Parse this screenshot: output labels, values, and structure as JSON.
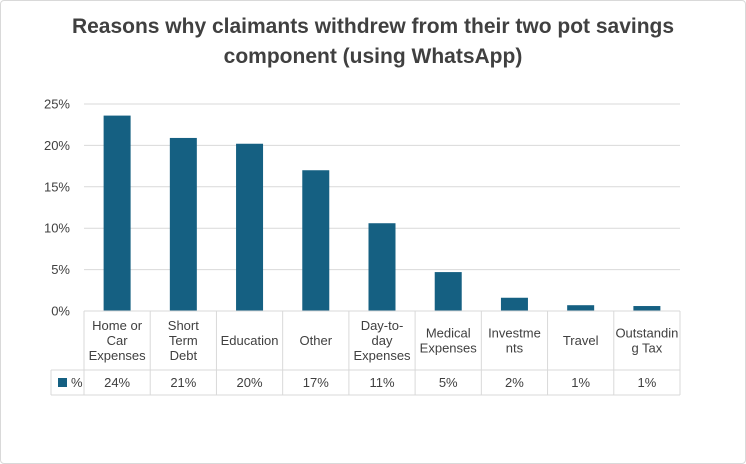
{
  "chart_data": {
    "type": "bar",
    "title": "Reasons why claimants withdrew from their two pot savings component (using WhatsApp)",
    "categories": [
      [
        "Home or",
        "Car",
        "Expenses"
      ],
      [
        "Short",
        "Term",
        "Debt"
      ],
      [
        "Education"
      ],
      [
        "Other"
      ],
      [
        "Day-to-",
        "day",
        "Expenses"
      ],
      [
        "Medical",
        "Expenses"
      ],
      [
        "Investme",
        "nts"
      ],
      [
        "Travel"
      ],
      [
        "Outstandin",
        "g Tax"
      ]
    ],
    "series": [
      {
        "name": "%",
        "values": [
          23.6,
          20.9,
          20.2,
          17.0,
          10.6,
          4.7,
          1.6,
          0.7,
          0.6
        ],
        "table_labels": [
          "24%",
          "21%",
          "20%",
          "17%",
          "11%",
          "5%",
          "2%",
          "1%",
          "1%"
        ],
        "color": "#156082"
      }
    ],
    "ylim": [
      0,
      25
    ],
    "yticks": [
      "0%",
      "5%",
      "10%",
      "15%",
      "20%",
      "25%"
    ],
    "grid": true,
    "data_table": true
  }
}
